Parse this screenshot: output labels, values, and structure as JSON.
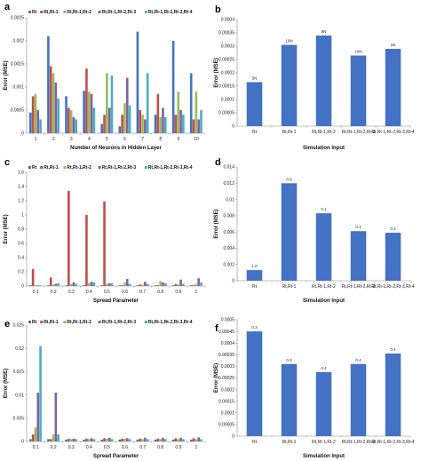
{
  "colors": {
    "series": [
      "#4472C4",
      "#C0504D",
      "#9BBB59",
      "#8064A2",
      "#4BACC6"
    ],
    "single": "#4472C4"
  },
  "chart_data": [
    {
      "panel": "a",
      "type": "bar",
      "legend_position": "top",
      "xlabel": "Number of Neurons in Hidden Layer",
      "ylabel": "Error (MSE)",
      "ylim": [
        0,
        0.0025
      ],
      "yticks": [
        "0",
        "0.0005",
        "0.001",
        "0.0015",
        "0.002",
        "0.0025"
      ],
      "yticks_values": [
        0,
        0.0005,
        0.001,
        0.0015,
        0.002,
        0.0025
      ],
      "categories": [
        "1",
        "2",
        "3",
        "4",
        "5",
        "6",
        "7",
        "8",
        "9",
        "10"
      ],
      "series": [
        {
          "name": "Rt",
          "values": [
            0.00045,
            0.0021,
            0.0008,
            0.00092,
            0.0002,
            0.00015,
            0.0022,
            0.0004,
            0.002,
            0.0013
          ]
        },
        {
          "name": "Rt,Rt-1",
          "values": [
            0.0008,
            0.00145,
            0.00055,
            0.0014,
            0.0004,
            0.0004,
            0.0005,
            0.00085,
            0.0004,
            0.0003
          ]
        },
        {
          "name": "Rt,Rt-1,Rt-2",
          "values": [
            0.00085,
            0.0013,
            0.0005,
            0.0009,
            0.0013,
            0.00065,
            0.0004,
            0.00035,
            0.0009,
            0.0009
          ]
        },
        {
          "name": "Rt,Rt-1,Rt-2,Rt-3",
          "values": [
            0.0005,
            0.0011,
            0.00035,
            0.00085,
            0.00055,
            0.0012,
            0.0003,
            0.00055,
            0.0005,
            0.0003
          ]
        },
        {
          "name": "Rt,Rt-1,Rt-2,Rt-3,Rt-4",
          "values": [
            0.0003,
            0.00075,
            0.0003,
            0.00055,
            0.00125,
            0.0006,
            0.0013,
            0.00035,
            0.0004,
            0.0005
          ]
        }
      ]
    },
    {
      "panel": "b",
      "type": "bar",
      "xlabel": "Simulation Input",
      "ylabel": "Error (MSE)",
      "ylim": [
        0,
        0.0004
      ],
      "yticks": [
        "0",
        "0.00005",
        "0.0001",
        "0.00015",
        "0.0002",
        "0.00025",
        "0.0003",
        "0.00035",
        "0.0004"
      ],
      "yticks_values": [
        0,
        5e-05,
        0.0001,
        0.00015,
        0.0002,
        0.00025,
        0.0003,
        0.00035,
        0.0004
      ],
      "categories": [
        "Rt",
        "Rt,Rt-1",
        "Rt,Rt-1,Rt-2",
        "Rt,Rt-1,Rt-2,Rt-3",
        "Rt,Rt-1,Rt-2,Rt-3,Rt-4"
      ],
      "values": [
        0.000165,
        0.000305,
        0.00034,
        0.000265,
        0.00029
      ],
      "data_labels": [
        "5N",
        "10N",
        "8N",
        "10N",
        "1N"
      ]
    },
    {
      "panel": "c",
      "type": "bar",
      "legend_position": "top",
      "xlabel": "Spread Parameter",
      "ylabel": "Error (MSE)",
      "ylim": [
        0,
        1.6
      ],
      "yticks": [
        "0",
        "0.2",
        "0.4",
        "0.6",
        "0.8",
        "1",
        "1.2",
        "1.4",
        "1.6"
      ],
      "yticks_values": [
        0,
        0.2,
        0.4,
        0.6,
        0.8,
        1,
        1.2,
        1.4,
        1.6
      ],
      "categories": [
        "0.1",
        "0.2",
        "0.3",
        "0.4",
        "0.5",
        "0.6",
        "0.7",
        "0.8",
        "0.9",
        "1"
      ],
      "series": [
        {
          "name": "Rt",
          "values": [
            0.01,
            0.01,
            0.01,
            0.01,
            0.01,
            0.01,
            0.01,
            0.01,
            0.01,
            0.01
          ]
        },
        {
          "name": "Rt,Rt-1",
          "values": [
            0.24,
            0.12,
            1.34,
            1.0,
            1.19,
            0.01,
            0.02,
            0.01,
            0.03,
            0.01
          ]
        },
        {
          "name": "Rt,Rt-1,Rt-2",
          "values": [
            0.01,
            0.02,
            0.03,
            0.04,
            0.03,
            0.05,
            0.02,
            0.07,
            0.02,
            0.03
          ]
        },
        {
          "name": "Rt,Rt-1,Rt-2,Rt-3",
          "values": [
            0.01,
            0.03,
            0.05,
            0.06,
            0.04,
            0.1,
            0.06,
            0.05,
            0.09,
            0.11
          ]
        },
        {
          "name": "Rt,Rt-1,Rt-2,Rt-3,Rt-4",
          "values": [
            0.01,
            0.04,
            0.03,
            0.05,
            0.04,
            0.03,
            0.03,
            0.04,
            0.03,
            0.05
          ]
        }
      ]
    },
    {
      "panel": "d",
      "type": "bar",
      "xlabel": "Simulation Input",
      "ylabel": "Error (MSE)",
      "ylim": [
        0,
        0.014
      ],
      "yticks": [
        "0",
        "0.002",
        "0.004",
        "0.006",
        "0.008",
        "0.01",
        "0.012",
        "0.014"
      ],
      "yticks_values": [
        0,
        0.002,
        0.004,
        0.006,
        0.008,
        0.01,
        0.012,
        0.014
      ],
      "categories": [
        "Rt",
        "Rt,Rt-1",
        "Rt,Rt-1,Rt-2",
        "Rt,Rt-1,Rt-2,Rt-3",
        "Rt,Rt-1,Rt-2,Rt-3,Rt-4"
      ],
      "values": [
        0.0013,
        0.012,
        0.0083,
        0.0061,
        0.0059
      ],
      "data_labels": [
        "1.0",
        "0.9",
        "0.1",
        "0.1",
        "0.1"
      ]
    },
    {
      "panel": "e",
      "type": "bar",
      "legend_position": "top",
      "xlabel": "Spread Parameter",
      "ylabel": "Error (MSE)",
      "ylim": [
        0,
        0.025
      ],
      "yticks": [
        "0",
        "0.005",
        "0.01",
        "0.015",
        "0.02",
        "0.025"
      ],
      "yticks_values": [
        0,
        0.005,
        0.01,
        0.015,
        0.02,
        0.025
      ],
      "categories": [
        "0.1",
        "0.2",
        "0.3",
        "0.4",
        "0.5",
        "0.6",
        "0.7",
        "0.8",
        "0.9",
        "1"
      ],
      "series": [
        {
          "name": "Rt",
          "values": [
            0.0005,
            0.0005,
            0.0004,
            0.0004,
            0.0004,
            0.0004,
            0.0004,
            0.0004,
            0.0004,
            0.0004
          ]
        },
        {
          "name": "Rt,Rt-1",
          "values": [
            0.0015,
            0.0005,
            0.0006,
            0.0006,
            0.0007,
            0.0006,
            0.0006,
            0.0006,
            0.0007,
            0.0007
          ]
        },
        {
          "name": "Rt,Rt-1,Rt-2",
          "values": [
            0.003,
            0.0015,
            0.0005,
            0.0005,
            0.0006,
            0.0006,
            0.0005,
            0.0005,
            0.0005,
            0.0005
          ]
        },
        {
          "name": "Rt,Rt-1,Rt-2,Rt-3",
          "values": [
            0.0105,
            0.0105,
            0.0006,
            0.0007,
            0.0008,
            0.0007,
            0.0008,
            0.0008,
            0.0008,
            0.0009
          ]
        },
        {
          "name": "Rt,Rt-1,Rt-2,Rt-3,Rt-4",
          "values": [
            0.0205,
            0.0015,
            0.0005,
            0.0005,
            0.0005,
            0.0005,
            0.0005,
            0.0005,
            0.0005,
            0.0005
          ]
        }
      ]
    },
    {
      "panel": "f",
      "type": "bar",
      "xlabel": "Simulation Input",
      "ylabel": "Error (MSE)",
      "ylim": [
        0,
        0.0005
      ],
      "yticks": [
        "0",
        "0.00005",
        "0.0001",
        "0.00015",
        "0.0002",
        "0.00025",
        "0.0003",
        "0.00035",
        "0.0004",
        "0.00045",
        "0.0005"
      ],
      "yticks_values": [
        0,
        5e-05,
        0.0001,
        0.00015,
        0.0002,
        0.00025,
        0.0003,
        0.00035,
        0.0004,
        0.00045,
        0.0005
      ],
      "categories": [
        "Rt",
        "Rt,Rt-1",
        "Rt,Rt-1,Rt-2",
        "Rt,Rt-1,Rt-2,Rt-3",
        "Rt,Rt-1,Rt-2,Rt-3,Rt-4"
      ],
      "values": [
        0.00045,
        0.00031,
        0.000275,
        0.00031,
        0.000355
      ],
      "data_labels": [
        "0.3",
        "0.3",
        "0.4",
        "0.4",
        "0.4"
      ]
    }
  ]
}
